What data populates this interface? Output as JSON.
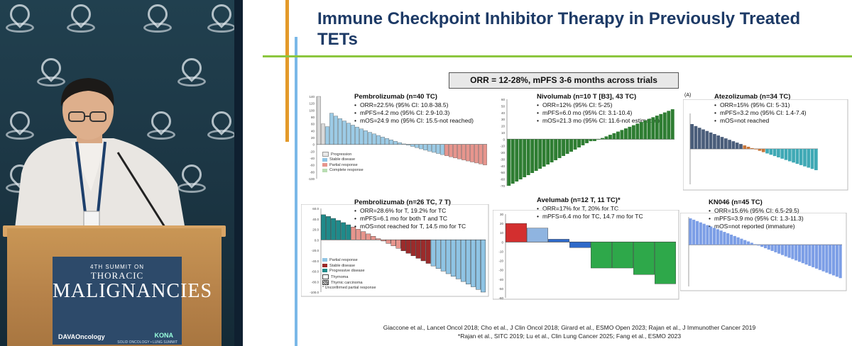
{
  "sign": {
    "edition": "4TH SUMMIT ON",
    "line1": "THORACIC",
    "line2": "MALIGNANCIES",
    "logo_left": "DAVAOncology",
    "logo_right": "KONA",
    "logo_right_sub": "SOLID ONCOLOGY • LUNG SUMMIT"
  },
  "slide": {
    "title": "Immune Checkpoint Inhibitor Therapy in Previously Treated TETs",
    "banner": "ORR = 12-28%, mPFS 3-6 months across trials",
    "colors": {
      "title": "#1d3a66",
      "orange_bar": "#e39a2a",
      "blue_bar": "#7ab8e8",
      "green_bar": "#8cc63f"
    },
    "panels": [
      {
        "title": "Pembrolizumab (n=40 TC)",
        "bullets": [
          "ORR=22.5% (95% CI: 10.8-38.5)",
          "mPFS=4.2 mo (95% CI: 2.9-10.3)",
          "mOS=24.9 mo (95% CI: 15.5-not reached)"
        ],
        "legend": [
          "Progression",
          "Stable disease",
          "Partial response",
          "Complete response"
        ],
        "axis_ticks": [
          "140",
          "120",
          "100",
          "80",
          "60",
          "40",
          "20",
          "0",
          "-20",
          "-40",
          "-60",
          "-80",
          "-100"
        ]
      },
      {
        "title": "Nivolumab (n=10 T [B3], 43 TC)",
        "bullets": [
          "ORR=12% (95% CI: 5-25)",
          "mPFS=6.0 mo (95% CI: 3.1-10.4)",
          "mOS=21.3 mo (95% CI: 11.6-not estimable)"
        ],
        "axis_ticks": [
          "60",
          "50",
          "40",
          "30",
          "20",
          "10",
          "0",
          "-10",
          "-20",
          "-30",
          "-40",
          "-50",
          "-60",
          "-70"
        ]
      },
      {
        "title": "Atezolizumab (n=34 TC)",
        "label": "(A)",
        "bullets": [
          "ORR=15% (95% CI: 5-31)",
          "mPFS=3.2 mo (95% CI: 1.4-7.4)",
          "mOS=not reached"
        ]
      },
      {
        "title": "Pembrolizumab (n=26 TC, 7 T)",
        "bullets": [
          "ORR=28.6% for T, 19.2% for TC",
          "mPFS=6.1 mo for both T and TC",
          "mOS=not reached for T, 14.5 mo for TC"
        ],
        "legend": [
          "Partial response",
          "Stable disease",
          "Progressive disease",
          "Thymoma",
          "Thymic carcinoma",
          "*  Unconfirmed partial response"
        ],
        "axis_ticks": [
          "60.0",
          "40.0",
          "20.0",
          "0.0",
          "-20.0",
          "-40.0",
          "-60.0",
          "-80.0",
          "-100.0"
        ]
      },
      {
        "title": "Avelumab (n=12 T, 11 TC)*",
        "bullets": [
          "ORR=17% for T, 20% for TC",
          "mPFS=6.4 mo for TC, 14.7 mo for TC"
        ],
        "axis_ticks": [
          "30",
          "20",
          "10",
          "0",
          "-10",
          "-20",
          "-30",
          "-40",
          "-50",
          "-60"
        ]
      },
      {
        "title": "KN046 (n=45 TC)",
        "bullets": [
          "ORR=15.6% (95% CI: 6.5-29.5)",
          "mPFS=3.9 mo (95% CI: 1.3-11.3)",
          "mOS=not reported (immature)"
        ]
      }
    ],
    "references": {
      "line1": "Giaccone et al., Lancet Oncol 2018; Cho et al., J Clin Oncol 2018; Girard et al., ESMO Open 2023; Rajan et al., J Immunother Cancer 2019",
      "line2": "*Rajan et al., SITC 2019; Lu et al., Clin Lung Cancer 2025; Fang et al., ESMO 2023"
    }
  }
}
